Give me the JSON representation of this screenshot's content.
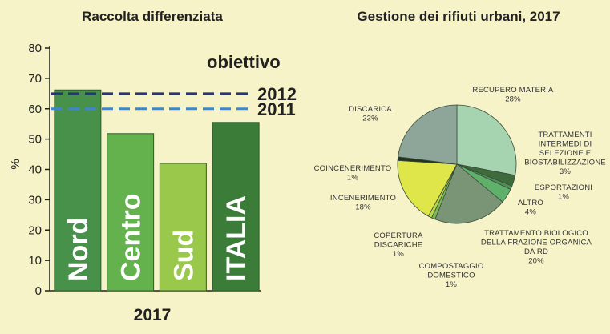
{
  "chart_data": [
    {
      "type": "bar",
      "title": "Raccolta differenziata",
      "xlabel": "2017",
      "ylabel": "%",
      "ylim": [
        0,
        80
      ],
      "yticks": [
        0,
        10,
        20,
        30,
        40,
        50,
        60,
        70,
        80
      ],
      "categories": [
        "Nord",
        "Centro",
        "Sud",
        "ITALIA"
      ],
      "values": [
        66.2,
        51.8,
        42.0,
        55.5
      ],
      "bar_colors": [
        "#47914a",
        "#63b24d",
        "#9ac84a",
        "#3b7c38"
      ],
      "target_heading": "obiettivo",
      "targets": [
        {
          "label": "2012",
          "value": 65,
          "color": "#27357a",
          "style": "dashed"
        },
        {
          "label": "2011",
          "value": 60,
          "color": "#3f87c8",
          "style": "dashed"
        }
      ],
      "grid": false,
      "legend": "none"
    },
    {
      "type": "pie",
      "title": "Gestione dei rifiuti urbani, 2017",
      "slices": [
        {
          "lines": [
            "RECUPERO MATERIA",
            "28%"
          ],
          "value": 28,
          "color": "#a6d4b0"
        },
        {
          "lines": [
            "TRATTAMENTI",
            "INTERMEDI DI",
            "SELEZIONE E",
            "BIOSTABILIZZAZIONE",
            "3%"
          ],
          "value": 3,
          "color": "#3e6b3c"
        },
        {
          "lines": [
            "ESPORTAZIONI",
            "1%"
          ],
          "value": 1,
          "color": "#4f8f57"
        },
        {
          "lines": [
            "ALTRO",
            "4%"
          ],
          "value": 4,
          "color": "#5fb06a"
        },
        {
          "lines": [
            "TRATTAMENTO BIOLOGICO",
            "DELLA FRAZIONE ORGANICA",
            "DA RD",
            "20%"
          ],
          "value": 20,
          "color": "#7a9576"
        },
        {
          "lines": [
            "COMPOSTAGGIO",
            "DOMESTICO",
            "1%"
          ],
          "value": 1,
          "color": "#7dba52"
        },
        {
          "lines": [
            "COPERTURA",
            "DISCARICHE",
            "1%"
          ],
          "value": 1,
          "color": "#b6d84a"
        },
        {
          "lines": [
            "INCENERIMENTO",
            "18%"
          ],
          "value": 18,
          "color": "#dfe64a"
        },
        {
          "lines": [
            "COINCENERIMENTO",
            "1%"
          ],
          "value": 1,
          "color": "#1f3320"
        },
        {
          "lines": [
            "DISCARICA",
            "23%"
          ],
          "value": 23,
          "color": "#8ea69a"
        }
      ],
      "legend": "none"
    }
  ]
}
